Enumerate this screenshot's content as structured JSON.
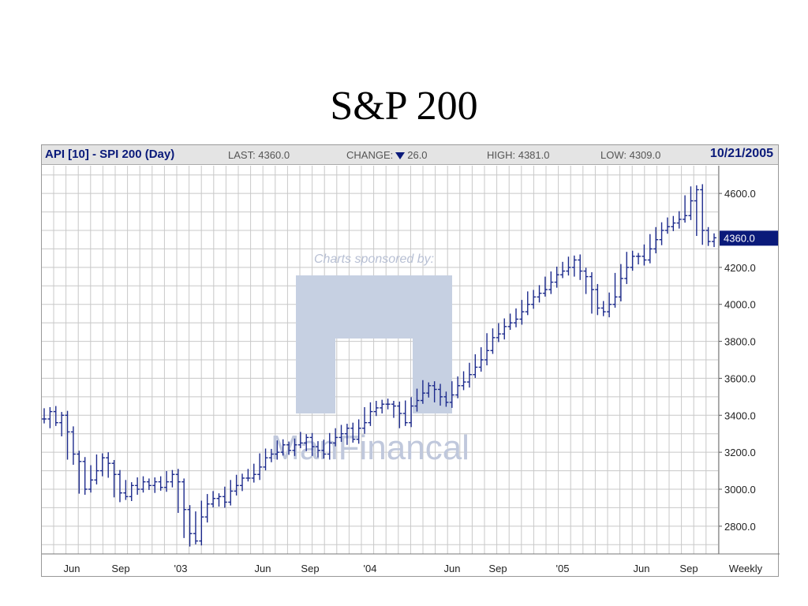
{
  "slide": {
    "title": "S&P 200"
  },
  "header": {
    "name": "API [10] - SPI 200 (Day)",
    "last": "LAST: 4360.0",
    "change_prefix": "CHANGE:",
    "change_value": "26.0",
    "high": "HIGH: 4381.0",
    "low": "LOW: 4309.0",
    "date": "10/21/2005"
  },
  "watermark": {
    "sponsor": "Charts sponsored by:",
    "company": "ManFinancal"
  },
  "colors": {
    "series": "#1c2a8c",
    "grid": "#c8c8c8",
    "last_tag": "#0a1a7a",
    "watermark": "#c6d0e2"
  },
  "chart_data": {
    "type": "line",
    "style": "ohlc-bars",
    "title": "API [10] - SPI 200 (Day)",
    "ylim": [
      2650,
      4750
    ],
    "y_ticks": [
      "4600.0",
      "4200.0",
      "4000.0",
      "3800.0",
      "3600.0",
      "3400.0",
      "3200.0",
      "3000.0",
      "2800.0"
    ],
    "x_ticks": [
      "Jun",
      "Sep",
      "'03",
      "Jun",
      "Sep",
      "'04",
      "Jun",
      "Sep",
      "'05",
      "Jun",
      "Sep",
      "Weekly"
    ],
    "last_value_label": "4360.0",
    "grid": true,
    "series": [
      {
        "values": [
          3380,
          3420,
          3360,
          3400,
          3310,
          3190,
          3150,
          3000,
          3050,
          3100,
          3170,
          3140,
          3080,
          2980,
          2960,
          3020,
          3000,
          3040,
          3020,
          3040,
          3010,
          3040,
          3080,
          3040,
          2890,
          2760,
          2720,
          2850,
          2920,
          2950,
          2960,
          2930,
          2990,
          3020,
          3060,
          3060,
          3080,
          3120,
          3170,
          3190,
          3200,
          3240,
          3210,
          3240,
          3250,
          3280,
          3230,
          3210,
          3190,
          3250,
          3280,
          3300,
          3330,
          3270,
          3330,
          3360,
          3420,
          3440,
          3460,
          3460,
          3450,
          3410,
          3360,
          3450,
          3480,
          3520,
          3560,
          3540,
          3500,
          3470,
          3510,
          3560,
          3580,
          3620,
          3660,
          3700,
          3750,
          3820,
          3840,
          3880,
          3900,
          3920,
          3960,
          4000,
          4040,
          4060,
          4080,
          4120,
          4160,
          4180,
          4200,
          4240,
          4180,
          4150,
          4080,
          3980,
          3960,
          4000,
          4040,
          4140,
          4200,
          4260,
          4260,
          4240,
          4300,
          4350,
          4400,
          4420,
          4440,
          4460,
          4480,
          4560,
          4620,
          4400,
          4340,
          4360
        ]
      }
    ]
  }
}
